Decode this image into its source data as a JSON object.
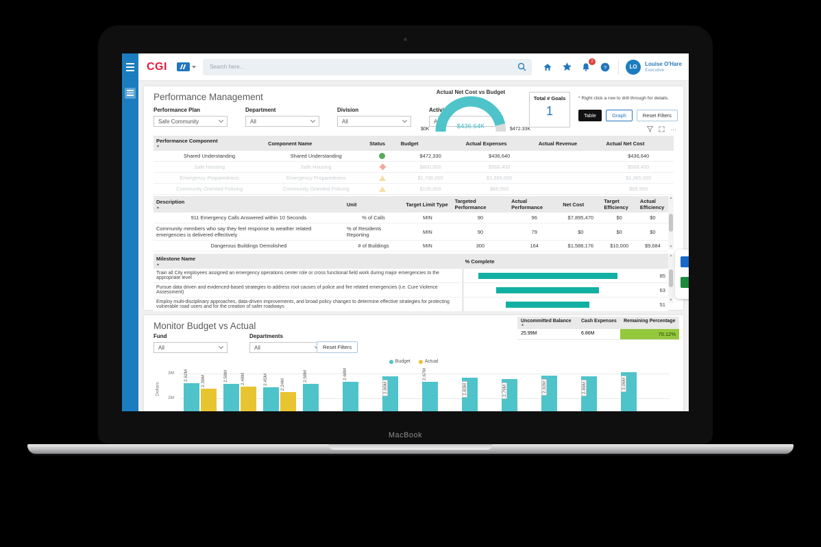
{
  "laptop": {
    "brand": "MacBook"
  },
  "header": {
    "logo": "CGI",
    "search_placeholder": "Search here...",
    "notification_count": "2",
    "user": {
      "initials": "LO",
      "name": "Louise O'Hare",
      "role": "Executive"
    }
  },
  "performance": {
    "title": "Performance Management",
    "filters": [
      {
        "label": "Performance Plan",
        "value": "Safe Community"
      },
      {
        "label": "Department",
        "value": "All"
      },
      {
        "label": "Division",
        "value": "All"
      },
      {
        "label": "Activity",
        "value": "All"
      }
    ],
    "gauge": {
      "title": "Actual Net Cost vs Budget",
      "value": "$436.64K",
      "min": "$0K",
      "max": "$472.33K",
      "percent": 92.4,
      "color": "#4ec4ca",
      "track_color": "#dcdcdc"
    },
    "goals": {
      "label": "Total # Goals",
      "value": "1"
    },
    "note": "* Right click a row to drill through for details.",
    "view_buttons": {
      "table": "Table",
      "graph": "Graph",
      "reset": "Reset Filters"
    },
    "component_table": {
      "headers": [
        "Performance Component",
        "Component Name",
        "Status",
        "Budget",
        "Actual Expenses",
        "Actual Revenue",
        "Actual Net Cost"
      ],
      "widths": [
        21.5,
        19.5,
        6,
        12.5,
        14,
        13,
        13.5
      ],
      "sort_col": 0,
      "sort_dir": "desc",
      "rows": [
        {
          "active": true,
          "cells": [
            "Shared Understanding",
            "Shared Understanding",
            "icon:circle",
            "$472,330",
            "$436,640",
            "",
            "$436,640"
          ]
        },
        {
          "active": false,
          "cells": [
            "Safe Housing",
            "Safe Housing",
            "icon:diamond",
            "$800,000",
            "$568,400",
            "",
            "$568,400"
          ]
        },
        {
          "active": false,
          "cells": [
            "Emergency Preparedness",
            "Emergency Preparedness",
            "icon:triangle",
            "$1,700,000",
            "$1,365,000",
            "",
            "$1,365,000"
          ]
        },
        {
          "active": false,
          "cells": [
            "Community Oriented Policing",
            "Community Oriented Policing",
            "icon:triangle",
            "$100,000",
            "$66,950",
            "",
            "$66,950"
          ]
        }
      ]
    },
    "kpi_table": {
      "headers": [
        "Description",
        "Unit",
        "Target Limit Type",
        "Targeted Performance",
        "Actual Performance",
        "Net Cost",
        "Target Efficiency",
        "Actual Efficiency"
      ],
      "widths": [
        37,
        11.5,
        9.5,
        11,
        10,
        8,
        7,
        6
      ],
      "sort_col": 0,
      "sort_dir": "asc",
      "rows": [
        {
          "active": true,
          "cells": [
            "911 Emergency Calls Answered within 10 Seconds",
            "% of Calls",
            "MIN",
            "90",
            "96",
            "$7,895,470",
            "$0",
            "$0"
          ]
        },
        {
          "active": true,
          "cells": [
            "Community members who say they feel response to weather related emergencies is delivered effectively",
            "% of Residents Reporting",
            "MIN",
            "90",
            "79",
            "$0",
            "$0",
            "$0"
          ]
        },
        {
          "active": true,
          "cells": [
            "Dangerous Buildings Demolished",
            "# of Buildings",
            "MIN",
            "300",
            "164",
            "$1,588,176",
            "$10,000",
            "$9,684"
          ]
        }
      ]
    },
    "milestone_table": {
      "name_header": "Milestone Name",
      "value_header": "% Complete",
      "bar_color": "#12b0a2",
      "rows": [
        {
          "name": "Train all City employees assigned an emergency operations center role or cross functional field work during major emergencies to the appropriate level",
          "value": 85
        },
        {
          "name": "Pursue data driven and evidenced-based strategies to address root causes of police and fire related emergencies (i.e. Cure Violence Assessment)",
          "value": 63
        },
        {
          "name": "Employ multi-disciplinary approaches, data-driven improvements, and broad policy changes to determine effective strategies for protecting vulnerable road users and for the creation of safer roadways",
          "value": 51
        }
      ]
    }
  },
  "budget": {
    "title": "Monitor Budget vs Actual",
    "filters": [
      {
        "label": "Fund",
        "value": "All"
      },
      {
        "label": "Departments",
        "value": "All"
      }
    ],
    "reset": "Reset Filters",
    "summary_table": {
      "headers": [
        "Uncommitted Balance",
        "Cash Expenses",
        "Remaining Percentage"
      ],
      "values": [
        "25.99M",
        "6.86M",
        "70.12%"
      ],
      "highlight_color": "#94c83d"
    },
    "chart_data": {
      "type": "bar",
      "title": "",
      "xlabel": "",
      "ylabel": "Dollars",
      "y_ticks": [
        {
          "label": "3M",
          "value": 3
        },
        {
          "label": "2M",
          "value": 2
        }
      ],
      "legend_position": "top",
      "grid": true,
      "series": [
        {
          "name": "Budget",
          "color": "#4ec3c9",
          "values": [
            2.62,
            2.58,
            2.45,
            2.58,
            2.68,
            2.9,
            2.67,
            2.83,
            2.79,
            2.92,
            2.89,
            3.06
          ]
        },
        {
          "name": "Actual",
          "color": "#e9c431",
          "values": [
            2.39,
            2.48,
            2.24,
            null,
            null,
            null,
            null,
            null,
            null,
            null,
            null,
            null
          ]
        }
      ],
      "value_label_format": "0.00M"
    }
  }
}
